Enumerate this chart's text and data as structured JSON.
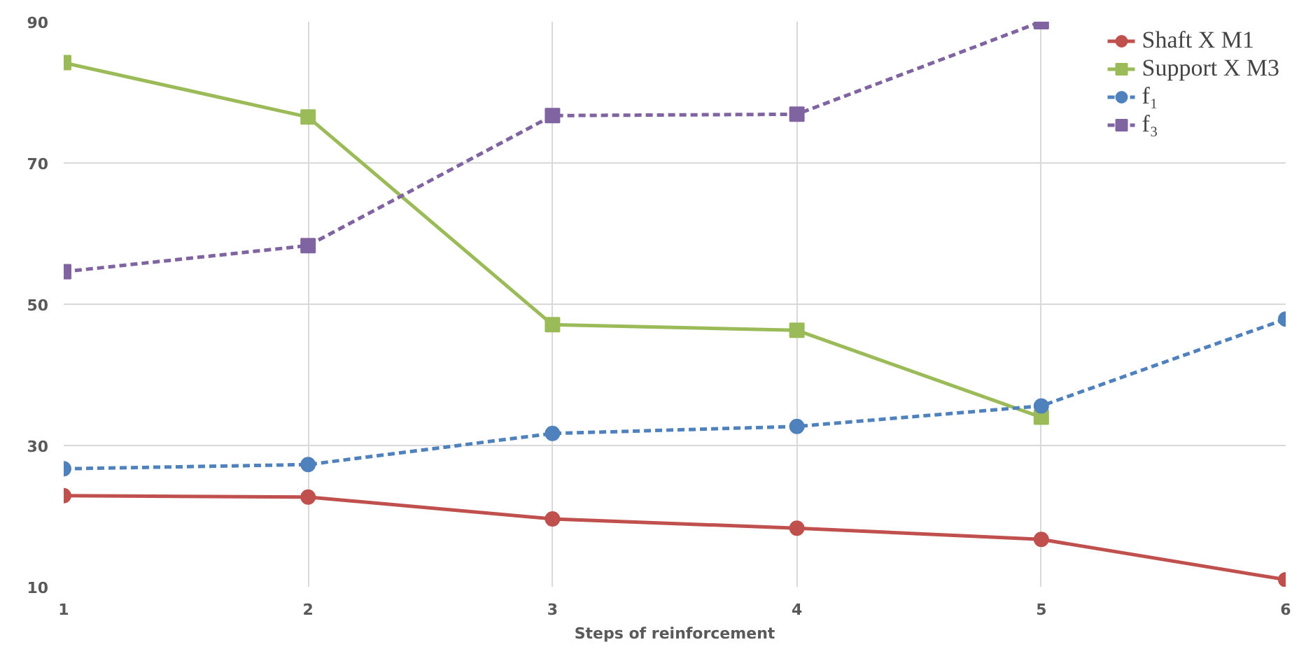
{
  "chart_data": {
    "type": "line",
    "xlabel": "Steps of reinforcement",
    "x": [
      1,
      2,
      3,
      4,
      5,
      6
    ],
    "xlim": [
      1,
      6
    ],
    "xticks": [
      1,
      2,
      3,
      4,
      5,
      6
    ],
    "ylim": [
      10,
      90
    ],
    "yticks": [
      10,
      30,
      50,
      70,
      90
    ],
    "grid": true,
    "legend": "top right",
    "series": [
      {
        "name": "Shaft X M1",
        "color": "#c0504d",
        "marker": "circle",
        "line_style": "solid",
        "values": [
          22.9,
          22.7,
          19.6,
          18.3,
          16.7,
          11.0
        ]
      },
      {
        "name": "Support X M3",
        "color": "#9bbb59",
        "marker": "square",
        "line_style": "solid",
        "values": [
          84.2,
          76.5,
          47.1,
          46.3,
          34.0,
          null
        ]
      },
      {
        "name": "f₁",
        "color": "#4f81bd",
        "marker": "circle",
        "line_style": "dashed",
        "values": [
          26.7,
          27.3,
          31.7,
          32.7,
          35.6,
          47.9
        ]
      },
      {
        "name": "f₃",
        "color": "#8064a2",
        "marker": "square",
        "line_style": "dashed",
        "values": [
          54.6,
          58.3,
          76.7,
          76.9,
          90.0,
          null
        ]
      }
    ]
  }
}
